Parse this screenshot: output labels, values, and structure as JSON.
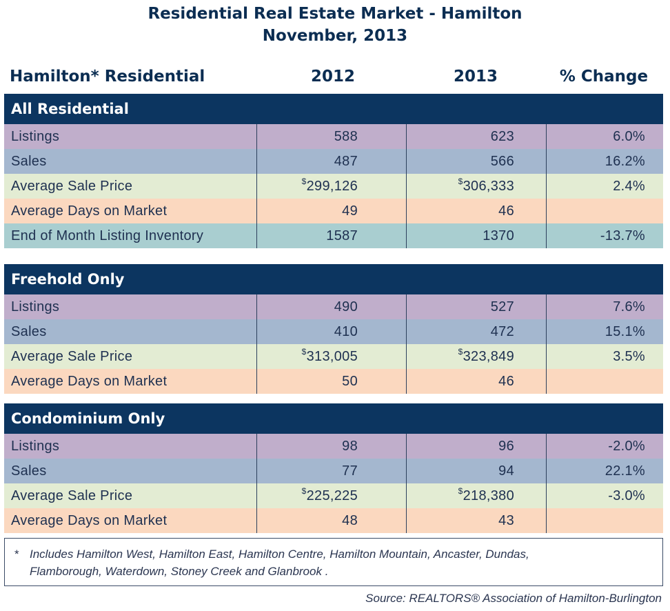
{
  "title_line1": "Residential Real Estate Market - Hamilton",
  "title_line2": "November, 2013",
  "columns": {
    "label": "Hamilton* Residential",
    "y2012": "2012",
    "y2013": "2013",
    "pct": "% Change"
  },
  "sections": [
    {
      "heading": "All Residential",
      "rows": [
        {
          "label": "Listings",
          "v2012": "588",
          "v2013": "623",
          "pct": "6.0%"
        },
        {
          "label": "Sales",
          "v2012": "487",
          "v2013": "566",
          "pct": "16.2%"
        },
        {
          "label": "Average Sale Price",
          "v2012": "299,126",
          "v2013": "306,333",
          "pct": "2.4%"
        },
        {
          "label": "Average Days on Market",
          "v2012": "49",
          "v2013": "46",
          "pct": ""
        },
        {
          "label": "End of Month Listing Inventory",
          "v2012": "1587",
          "v2013": "1370",
          "pct": "-13.7%"
        }
      ]
    },
    {
      "heading": "Freehold Only",
      "rows": [
        {
          "label": "Listings",
          "v2012": "490",
          "v2013": "527",
          "pct": "7.6%"
        },
        {
          "label": "Sales",
          "v2012": "410",
          "v2013": "472",
          "pct": "15.1%"
        },
        {
          "label": "Average Sale Price",
          "v2012": "313,005",
          "v2013": "323,849",
          "pct": "3.5%"
        },
        {
          "label": "Average Days on Market",
          "v2012": "50",
          "v2013": "46",
          "pct": ""
        }
      ]
    },
    {
      "heading": "Condominium Only",
      "rows": [
        {
          "label": "Listings",
          "v2012": "98",
          "v2013": "96",
          "pct": "-2.0%"
        },
        {
          "label": "Sales",
          "v2012": "77",
          "v2013": "94",
          "pct": "22.1%"
        },
        {
          "label": "Average Sale Price",
          "v2012": "225,225",
          "v2013": "218,380",
          "pct": "-3.0%"
        },
        {
          "label": "Average Days on Market",
          "v2012": "48",
          "v2013": "43",
          "pct": ""
        }
      ]
    }
  ],
  "currency_symbol": "$",
  "footnote": {
    "star": "*",
    "line1": "Includes Hamilton West, Hamilton East, Hamilton Centre, Hamilton Mountain, Ancaster, Dundas,",
    "line2": "Flamborough, Waterdown, Stoney Creek and Glanbrook ."
  },
  "source": "Source:  REALTORS® Association of Hamilton-Burlington",
  "colors": {
    "header_navy": "#0c3560",
    "listings": "#c0aecb",
    "sales": "#a4b7cf",
    "avg_price": "#e3ecd3",
    "days": "#fbd8bf",
    "inventory": "#a9ced0"
  }
}
